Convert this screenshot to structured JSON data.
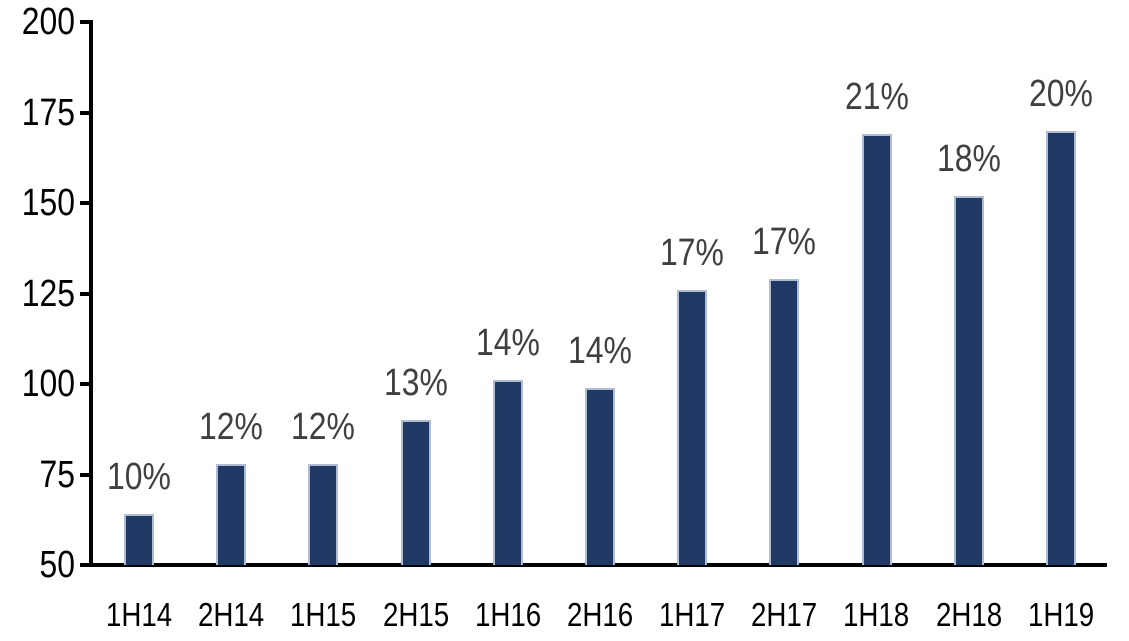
{
  "chart_data": {
    "type": "bar",
    "title": "",
    "xlabel": "",
    "ylabel": "",
    "categories": [
      "1H14",
      "2H14",
      "1H15",
      "2H15",
      "1H16",
      "2H16",
      "1H17",
      "2H17",
      "1H18",
      "2H18",
      "1H19"
    ],
    "values": [
      64,
      78,
      78,
      90,
      101,
      99,
      126,
      129,
      169,
      152,
      170
    ],
    "bar_labels": [
      "10%",
      "12%",
      "12%",
      "13%",
      "14%",
      "14%",
      "17%",
      "17%",
      "21%",
      "18%",
      "20%"
    ],
    "ylim": [
      50,
      200
    ],
    "yticks": [
      50,
      75,
      100,
      125,
      150,
      175,
      200
    ],
    "grid": false,
    "legend": false,
    "colors": {
      "bar_fill": "#1F3864",
      "bar_border": "#AFBCD3",
      "data_label": "#404040",
      "axis_line": "#000000",
      "axis_text": "#000000",
      "background": "#FFFFFF"
    }
  }
}
